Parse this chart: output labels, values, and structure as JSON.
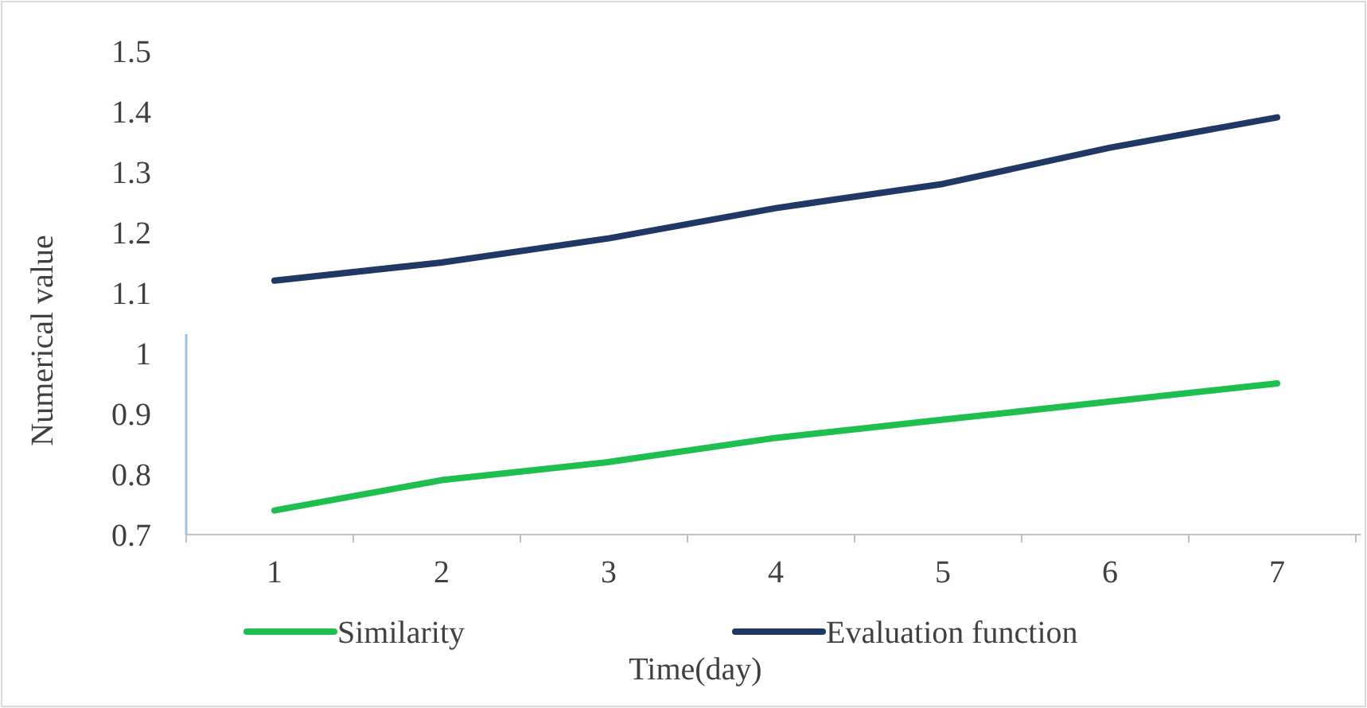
{
  "chart_data": {
    "type": "line",
    "xlabel": "Time(day)",
    "ylabel": "Numerical value",
    "categories": [
      "1",
      "2",
      "3",
      "4",
      "5",
      "6",
      "7"
    ],
    "series": [
      {
        "name": "Similarity",
        "color": "#1fbf4f",
        "values": [
          0.74,
          0.79,
          0.82,
          0.86,
          0.89,
          0.92,
          0.95
        ]
      },
      {
        "name": "Evaluation function",
        "color": "#1f3864",
        "values": [
          1.12,
          1.15,
          1.19,
          1.24,
          1.28,
          1.34,
          1.39
        ]
      }
    ],
    "ylim": [
      0.7,
      1.5
    ],
    "yticks": [
      0.7,
      0.8,
      0.9,
      1,
      1.1,
      1.2,
      1.3,
      1.4,
      1.5
    ],
    "grid": false,
    "legend": "bottom",
    "marker": "none",
    "line_style": "solid"
  }
}
